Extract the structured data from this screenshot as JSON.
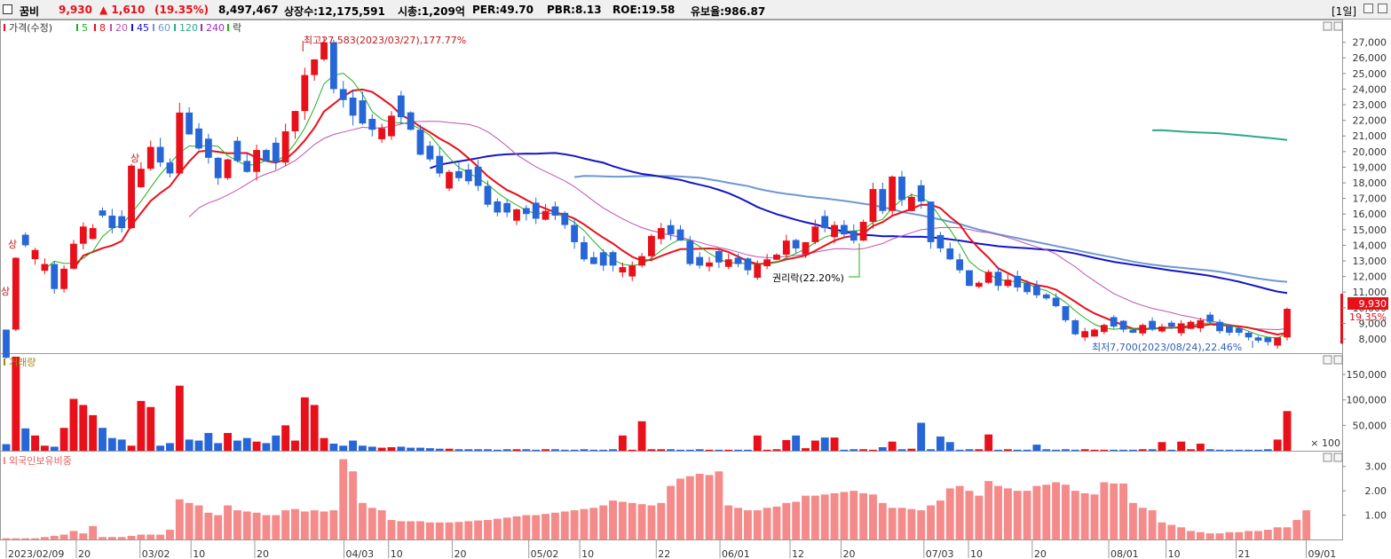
{
  "header": {
    "name": "꿈비",
    "price": "9,930",
    "change": "▲ 1,610",
    "change_pct": "(19.35%)",
    "volume": "8,497,467",
    "shares": "상장수:12,175,591",
    "mcap": "시총:1,209억",
    "per": "PER:49.70",
    "pbr": "PBR:8.13",
    "roe": "ROE:19.58",
    "float": "유보율:986.87",
    "period": "[1일]"
  },
  "colors": {
    "up": "#e8101a",
    "down": "#2766d6",
    "ma5": "#1fb01f",
    "ma8": "#e8101a",
    "ma20": "#c04fb4",
    "ma45": "#1515c8",
    "ma60": "#6e97d2",
    "ma120": "#2ea88a",
    "ma240": "#9a2ec0",
    "volume_label": "#9a8a10",
    "foreign": "#f58a8a"
  },
  "legend": {
    "price": "가격(수정)",
    "ma5": "5",
    "ma8": "8",
    "ma20": "20",
    "ma45": "45",
    "ma60": "60",
    "ma120": "120",
    "ma240": "240",
    "rak": "락"
  },
  "panels": {
    "volume_title": "거래량",
    "foreign_title": "외국인보유비중"
  },
  "annotations": {
    "high": "최고27,583(2023/03/27),177.77%",
    "low": "최저7,700(2023/08/24),22.46%",
    "rights": "권리락(22.20%)",
    "upper_limit": "상",
    "last_price": "9,930",
    "last_pct": "19.35%"
  },
  "chart_data": [
    {
      "type": "candlestick",
      "title": "가격(수정)",
      "x_start": "2023-02-09",
      "x_end": "2023-08-29",
      "x_ticks": [
        {
          "date": "2023-02-09",
          "label": "2023/02/09"
        },
        {
          "date": "2023-02-20",
          "label": "20"
        },
        {
          "date": "2023-03-02",
          "label": "03/02"
        },
        {
          "date": "2023-03-10",
          "label": "10"
        },
        {
          "date": "2023-03-20",
          "label": "20"
        },
        {
          "date": "2023-04-03",
          "label": "04/03"
        },
        {
          "date": "2023-04-10",
          "label": "10"
        },
        {
          "date": "2023-04-20",
          "label": "20"
        },
        {
          "date": "2023-05-02",
          "label": "05/02"
        },
        {
          "date": "2023-05-10",
          "label": "10"
        },
        {
          "date": "2023-05-22",
          "label": "22"
        },
        {
          "date": "2023-06-01",
          "label": "06/01"
        },
        {
          "date": "2023-06-12",
          "label": "12"
        },
        {
          "date": "2023-06-20",
          "label": "20"
        },
        {
          "date": "2023-07-03",
          "label": "07/03"
        },
        {
          "date": "2023-07-10",
          "label": "10"
        },
        {
          "date": "2023-07-20",
          "label": "20"
        },
        {
          "date": "2023-08-01",
          "label": "08/01"
        },
        {
          "date": "2023-08-10",
          "label": "10"
        },
        {
          "date": "2023-08-21",
          "label": "21"
        },
        {
          "date": "2023-09-01",
          "label": "09/01"
        }
      ],
      "y_ticks": [
        8000,
        9000,
        10000,
        11000,
        12000,
        13000,
        14000,
        15000,
        16000,
        17000,
        18000,
        19000,
        20000,
        21000,
        22000,
        23000,
        24000,
        25000,
        26000,
        27000
      ],
      "y_tick_labels": [
        "8,000",
        "9,000",
        "10,000",
        "11,000",
        "12,000",
        "13,000",
        "14,000",
        "15,000",
        "16,000",
        "17,000",
        "18,000",
        "19,000",
        "20,000",
        "21,000",
        "22,000",
        "23,000",
        "24,000",
        "25,000",
        "26,000",
        "27,000"
      ],
      "y_range": [
        7150,
        28400
      ],
      "close": [
        8600,
        13200,
        14000,
        13700,
        12800,
        11200,
        12500,
        14100,
        15200,
        15100,
        15900,
        15100,
        15100,
        19100,
        18900,
        20300,
        19300,
        18600,
        22500,
        21100,
        20200,
        19600,
        18300,
        19500,
        19400,
        18700,
        20100,
        19400,
        19300,
        21300,
        22600,
        24900,
        25900,
        27000,
        24000,
        23300,
        22300,
        21800,
        21400,
        21500,
        22300,
        22200,
        21400,
        19800,
        19500,
        18600,
        18700,
        18300,
        18100,
        17800,
        16600,
        16100,
        16100,
        16300,
        16000,
        15700,
        16200,
        15900,
        15300,
        14200,
        13100,
        12800,
        12700,
        12700,
        12600,
        12700,
        13300,
        14600,
        15100,
        14700,
        14300,
        12800,
        12700,
        12900,
        12900,
        13100,
        12800,
        12400,
        12800,
        13100,
        13400,
        14300,
        13800,
        14200,
        15200,
        15100,
        15300,
        14700,
        14300,
        15500,
        17600,
        16200,
        18400,
        16900,
        17100,
        16800,
        14200,
        13800,
        13100,
        12400,
        11400,
        11600,
        12300,
        11400,
        11800,
        11300,
        11000,
        10800,
        10600,
        10100,
        9200,
        8300,
        8500,
        8600,
        8900,
        8800,
        8600,
        8400,
        8900,
        8600,
        8800,
        8800,
        9000,
        9100,
        9200,
        9100,
        8500,
        8400,
        8400,
        8100,
        7900,
        7800,
        8100,
        9930
      ],
      "annotations": [
        "최고27,583(2023/03/27),177.77%",
        "최저7,700(2023/08/24),22.46%",
        "권리락(22.20%)",
        "상"
      ],
      "last_value": 9930,
      "last_change_pct": "19.35%"
    },
    {
      "type": "bar",
      "title": "거래량",
      "y_ticks": [
        50000,
        100000,
        150000
      ],
      "y_tick_labels": [
        "50,000",
        "100,000",
        "150,000"
      ],
      "y_range": [
        0,
        185000
      ],
      "unit_label": "× 100",
      "values": [
        13000,
        185000,
        44000,
        30000,
        10000,
        8000,
        45000,
        102000,
        90000,
        70000,
        45000,
        25000,
        22000,
        10000,
        98000,
        86000,
        10000,
        15000,
        128000,
        22000,
        20000,
        35000,
        15000,
        35000,
        20000,
        25000,
        18000,
        15000,
        30000,
        50000,
        20000,
        105000,
        90000,
        25000,
        14000,
        10000,
        20000,
        10000,
        8000,
        6000,
        7000,
        8000,
        6000,
        6000,
        5000,
        4000,
        4000,
        3000,
        3000,
        3000,
        3000,
        2000,
        3000,
        3000,
        3000,
        2000,
        3000,
        3000,
        2000,
        2000,
        3000,
        2000,
        2000,
        3000,
        30000,
        2000,
        58000,
        3000,
        3000,
        3000,
        2000,
        2000,
        3000,
        2000,
        2000,
        2000,
        2000,
        2000,
        30000,
        2000,
        3000,
        21000,
        30000,
        5000,
        20000,
        26000,
        26000,
        2000,
        3000,
        3000,
        2000,
        7000,
        18000,
        3000,
        4000,
        55000,
        3000,
        28000,
        17000,
        2000,
        3000,
        3000,
        32000,
        2000,
        3000,
        2000,
        2000,
        12000,
        3000,
        2000,
        3000,
        2000,
        3000,
        2000,
        2000,
        2000,
        2000,
        2000,
        3000,
        3000,
        17000,
        2000,
        18000,
        3000,
        14000,
        3000,
        2000,
        2000,
        2000,
        2000,
        2000,
        3000,
        22000,
        78000
      ],
      "up_days": [
        0,
        1,
        0,
        1,
        1,
        0,
        1,
        1,
        1,
        1,
        0,
        0,
        0,
        1,
        1,
        1,
        0,
        0,
        1,
        0,
        0,
        0,
        0,
        1,
        0,
        0,
        1,
        0,
        0,
        1,
        1,
        1,
        1,
        1,
        0,
        0,
        0,
        0,
        0,
        1,
        1,
        0,
        0,
        0,
        0,
        0,
        1,
        0,
        0,
        0,
        0,
        0,
        0,
        1,
        0,
        0,
        1,
        0,
        0,
        0,
        0,
        0,
        0,
        0,
        1,
        1,
        1,
        1,
        1,
        0,
        0,
        0,
        0,
        1,
        0,
        1,
        0,
        0,
        1,
        1,
        1,
        1,
        0,
        1,
        1,
        0,
        1,
        0,
        0,
        1,
        1,
        0,
        1,
        0,
        1,
        0,
        0,
        0,
        0,
        0,
        0,
        1,
        1,
        0,
        1,
        0,
        0,
        0,
        0,
        0,
        0,
        0,
        1,
        1,
        1,
        0,
        0,
        0,
        1,
        0,
        1,
        0,
        1,
        1,
        1,
        0,
        0,
        0,
        0,
        0,
        0,
        0,
        1,
        1
      ]
    },
    {
      "type": "bar",
      "title": "외국인보유비중",
      "y_ticks": [
        1,
        2,
        3
      ],
      "y_tick_labels": [
        "1.00",
        "2.00",
        "3.00"
      ],
      "y_range": [
        0,
        3.5
      ],
      "values": [
        0.05,
        0.05,
        0.05,
        0.05,
        0.1,
        0.15,
        0.2,
        0.35,
        0.25,
        0.55,
        0.1,
        0.1,
        0.1,
        0.15,
        0.2,
        0.2,
        0.2,
        0.4,
        1.65,
        1.5,
        1.4,
        1.1,
        1.0,
        1.4,
        1.2,
        1.15,
        1.1,
        1.0,
        1.0,
        1.2,
        1.25,
        1.15,
        1.2,
        1.15,
        1.2,
        3.3,
        2.8,
        1.5,
        1.3,
        1.2,
        0.8,
        0.75,
        0.75,
        0.75,
        0.7,
        0.7,
        0.7,
        0.72,
        0.75,
        0.78,
        0.8,
        0.85,
        0.9,
        0.95,
        1.0,
        1.0,
        1.05,
        1.1,
        1.15,
        1.2,
        1.25,
        1.3,
        1.4,
        1.6,
        1.55,
        1.5,
        1.45,
        1.4,
        1.5,
        2.2,
        2.5,
        2.6,
        2.7,
        2.65,
        2.8,
        1.4,
        1.3,
        1.2,
        1.2,
        1.3,
        1.35,
        1.5,
        1.55,
        1.8,
        1.8,
        1.85,
        1.9,
        1.95,
        2.0,
        1.9,
        1.85,
        1.5,
        1.3,
        1.3,
        1.25,
        1.2,
        1.4,
        1.6,
        2.1,
        2.2,
        2.0,
        1.8,
        2.4,
        2.2,
        2.1,
        2.0,
        2.0,
        2.2,
        2.25,
        2.35,
        2.25,
        2.0,
        1.9,
        1.85,
        2.35,
        2.3,
        2.3,
        1.5,
        1.3,
        1.2,
        0.7,
        0.6,
        0.5,
        0.35,
        0.3,
        0.25,
        0.25,
        0.3,
        0.3,
        0.35,
        0.35,
        0.4,
        0.5,
        0.5,
        0.8,
        1.2
      ]
    }
  ]
}
